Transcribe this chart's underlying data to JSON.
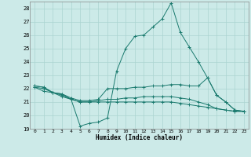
{
  "xlabel": "Humidex (Indice chaleur)",
  "bg_color": "#cceae8",
  "grid_color": "#aad4d0",
  "line_color": "#1a7a6e",
  "xlim": [
    -0.5,
    23.5
  ],
  "ylim": [
    19,
    28.5
  ],
  "yticks": [
    19,
    20,
    21,
    22,
    23,
    24,
    25,
    26,
    27,
    28
  ],
  "xticks": [
    0,
    1,
    2,
    3,
    4,
    5,
    6,
    7,
    8,
    9,
    10,
    11,
    12,
    13,
    14,
    15,
    16,
    17,
    18,
    19,
    20,
    21,
    22,
    23
  ],
  "series": [
    {
      "x": [
        0,
        1,
        2,
        3,
        4,
        5,
        6,
        7,
        8,
        9,
        10,
        11,
        12,
        13,
        14,
        15,
        16,
        17,
        18,
        19,
        20,
        21,
        22,
        23
      ],
      "y": [
        22.2,
        22.1,
        21.7,
        21.6,
        21.2,
        19.2,
        19.4,
        19.5,
        19.8,
        23.3,
        25.0,
        25.9,
        26.0,
        26.6,
        27.2,
        28.4,
        26.2,
        25.1,
        24.0,
        22.8,
        21.5,
        21.0,
        20.4,
        20.3
      ]
    },
    {
      "x": [
        0,
        1,
        2,
        3,
        4,
        5,
        6,
        7,
        8,
        9,
        10,
        11,
        12,
        13,
        14,
        15,
        16,
        17,
        18,
        19,
        20,
        21,
        22,
        23
      ],
      "y": [
        22.2,
        22.1,
        21.7,
        21.6,
        21.3,
        21.1,
        21.1,
        21.2,
        22.0,
        22.0,
        22.0,
        22.1,
        22.1,
        22.2,
        22.2,
        22.3,
        22.3,
        22.2,
        22.2,
        22.8,
        21.5,
        21.0,
        20.4,
        20.3
      ]
    },
    {
      "x": [
        0,
        1,
        2,
        3,
        4,
        5,
        6,
        7,
        8,
        9,
        10,
        11,
        12,
        13,
        14,
        15,
        16,
        17,
        18,
        19,
        20,
        21,
        22,
        23
      ],
      "y": [
        22.1,
        21.8,
        21.7,
        21.4,
        21.2,
        21.0,
        21.0,
        21.1,
        21.2,
        21.2,
        21.3,
        21.3,
        21.4,
        21.4,
        21.4,
        21.4,
        21.3,
        21.2,
        21.0,
        20.8,
        20.5,
        20.4,
        20.3,
        20.3
      ]
    },
    {
      "x": [
        0,
        1,
        2,
        3,
        4,
        5,
        6,
        7,
        8,
        9,
        10,
        11,
        12,
        13,
        14,
        15,
        16,
        17,
        18,
        19,
        20,
        21,
        22,
        23
      ],
      "y": [
        22.1,
        22.0,
        21.7,
        21.5,
        21.2,
        21.0,
        21.0,
        21.0,
        21.0,
        21.0,
        21.0,
        21.0,
        21.0,
        21.0,
        21.0,
        21.0,
        20.9,
        20.8,
        20.7,
        20.6,
        20.5,
        20.4,
        20.3,
        20.3
      ]
    }
  ]
}
